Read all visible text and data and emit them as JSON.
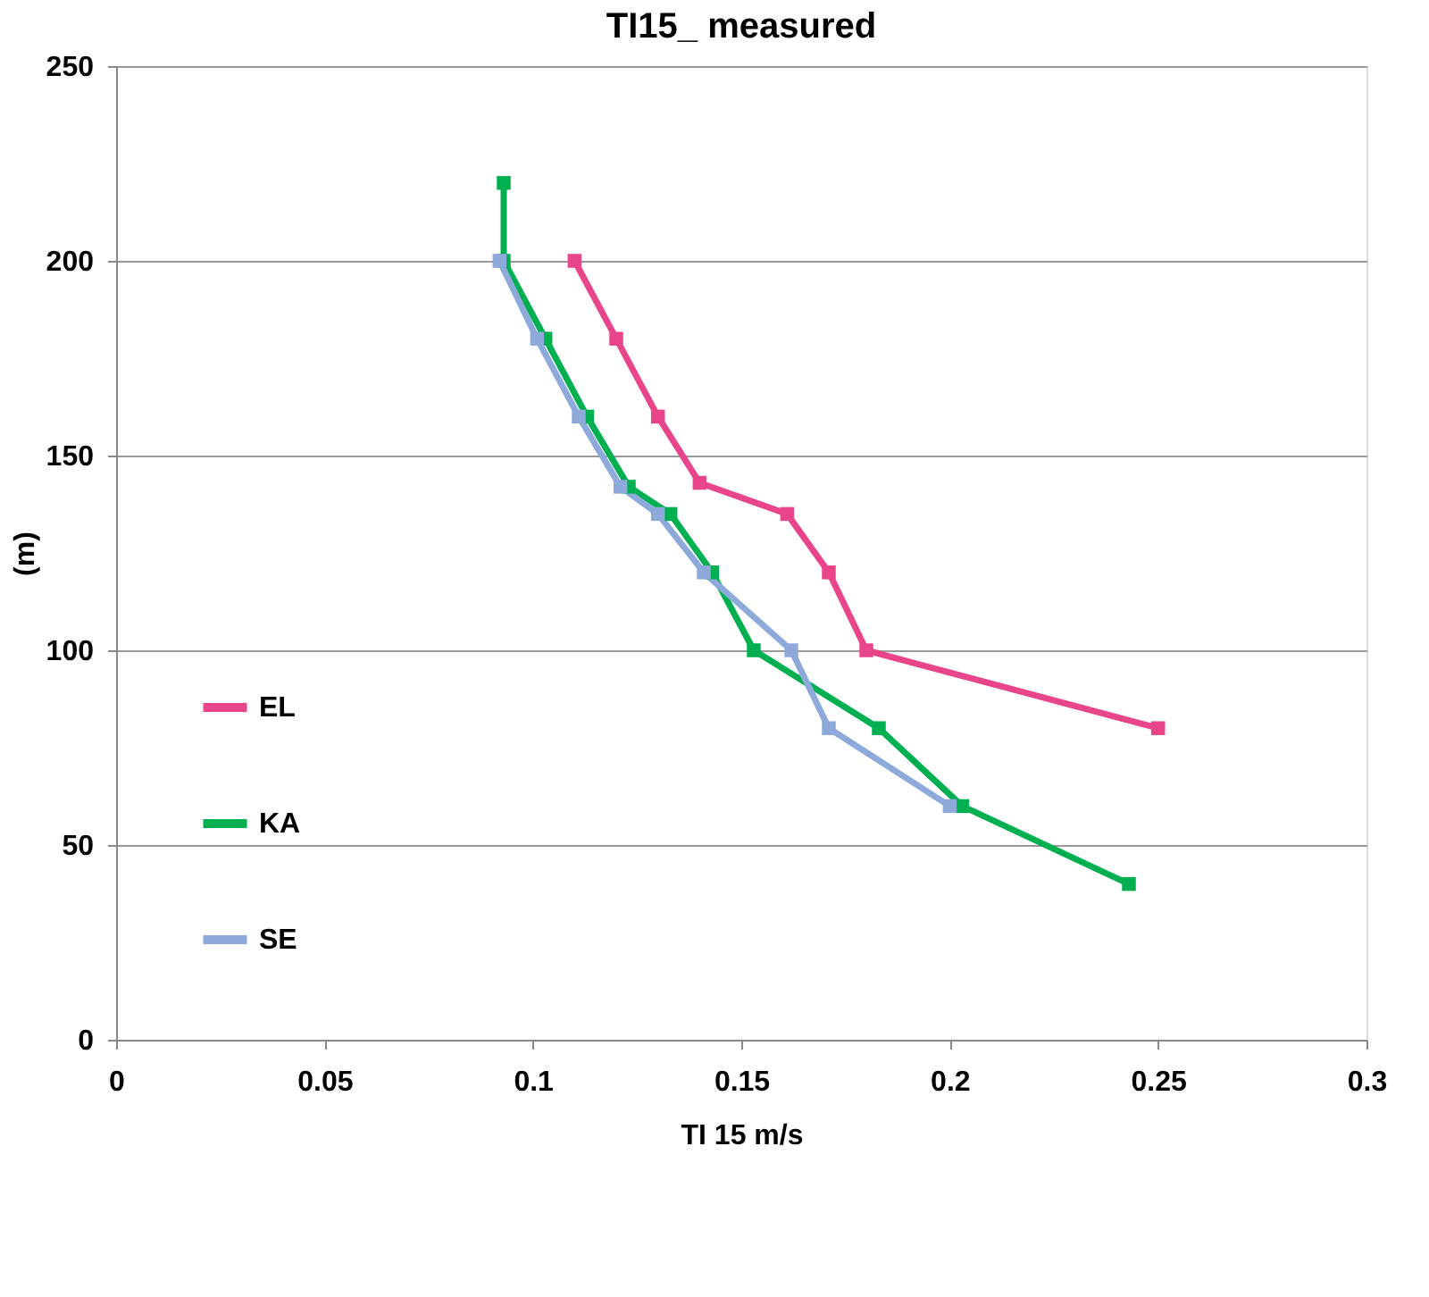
{
  "chart_data": {
    "type": "line",
    "title": "TI15_ measured",
    "xlabel": "TI   15 m/s",
    "ylabel": "(m)",
    "xlim": [
      0,
      0.3
    ],
    "xticks": [
      0,
      0.05,
      0.1,
      0.15,
      0.2,
      0.25,
      0.3
    ],
    "ylim": [
      0,
      250
    ],
    "yticks": [
      0,
      50,
      100,
      150,
      200,
      250
    ],
    "grid": "y",
    "legend": "bottom left",
    "marker": "square",
    "line_style": "solid",
    "series": [
      {
        "name": "EL",
        "color": "#e8458b",
        "x": [
          0.11,
          0.12,
          0.13,
          0.14,
          0.161,
          0.171,
          0.18,
          0.25
        ],
        "values": [
          200,
          180,
          160,
          143,
          135,
          120,
          100,
          80
        ]
      },
      {
        "name": "KA",
        "color": "#00b050",
        "x": [
          0.093,
          0.093,
          0.103,
          0.113,
          0.123,
          0.133,
          0.143,
          0.153,
          0.183,
          0.203,
          0.243
        ],
        "values": [
          220,
          200,
          180,
          160,
          142,
          135,
          120,
          100,
          80,
          60,
          40
        ]
      },
      {
        "name": "SE",
        "color": "#8eaadb",
        "x": [
          0.092,
          0.101,
          0.111,
          0.121,
          0.13,
          0.141,
          0.162,
          0.171,
          0.2
        ],
        "values": [
          200,
          180,
          160,
          142,
          135,
          120,
          100,
          80,
          60
        ]
      }
    ]
  }
}
